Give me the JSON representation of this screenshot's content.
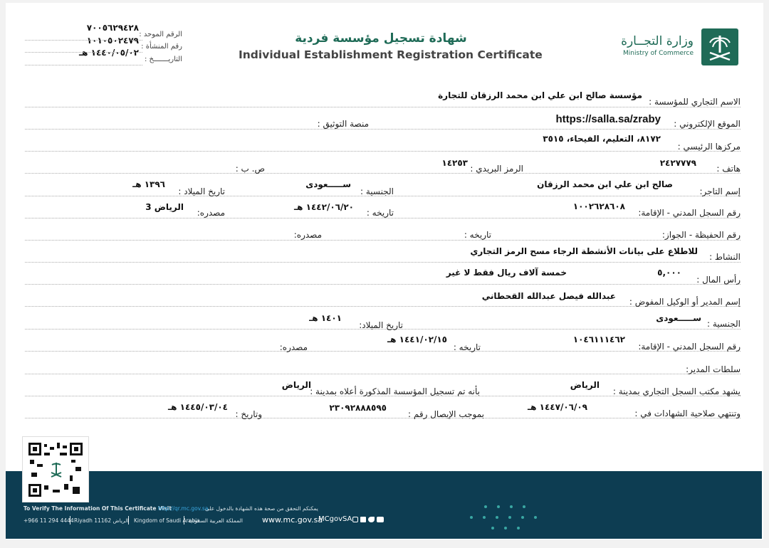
{
  "header": {
    "ministry_ar": "وزارة التجــارة",
    "ministry_en": "Ministry of Commerce",
    "title_ar": "شهادة تسجيل مؤسسة فردية",
    "title_en": "Individual Establishment Registration Certificate",
    "meta": [
      {
        "label": "الرقم الموحد :",
        "value": "٧٠٠٥٦٢٩٤٢٨"
      },
      {
        "label": "رقم المنشأة :",
        "value": "١٠١٠٥٠٢٤٧٩"
      },
      {
        "label": "التاريـــــــخ :",
        "value": "١٤٤٠/٠٥/٠٢ هـ"
      }
    ]
  },
  "fields": {
    "trade_name": {
      "label": "الاسم التجاري للمؤسسة :",
      "value": "مؤسسة صالح ابن علي ابن محمد الرزقان للتجارة"
    },
    "website": {
      "label": "الموقع الإلكتروني :",
      "value": "https://salla.sa/zraby"
    },
    "auth_platform": {
      "label": "منصة التوثيق :"
    },
    "hq": {
      "label": "مركزها الرئيسي :",
      "value": "٨١٧٢، التعليم، الفيحاء، ٣٥١٥"
    },
    "phone": {
      "label": "هاتف :",
      "value": "٢٤٢٧٧٧٩"
    },
    "postal": {
      "label": "الرمز البريدي :",
      "value": "١٤٢٥٣"
    },
    "pobox": {
      "label": "ص. ب :"
    },
    "merchant_name": {
      "label": "إسم التاجر:",
      "value": "صالح ابن علي ابن محمد الرزقان"
    },
    "merchant_nationality": {
      "label": "الجنسية :",
      "value": "ســـــعودى"
    },
    "merchant_birth": {
      "label": "تاريخ الميلاد :",
      "value": "١٣٩٦ هـ"
    },
    "merchant_id": {
      "label": "رقم السجل المدني - الإقامة:",
      "value": "١٠٠٢٦٢٨٦٠٨"
    },
    "merchant_id_date": {
      "label": "تاريخه :",
      "value": "١٤٤٢/٠٦/٢٠ هـ"
    },
    "merchant_id_source": {
      "label": "مصدره:",
      "value": "الرياض 3"
    },
    "passport": {
      "label": "رقم الحفيظة - الجواز:"
    },
    "passport_date": {
      "label": "تاريخه :"
    },
    "passport_source": {
      "label": "مصدره:"
    },
    "activity": {
      "label": "النشاط :",
      "value": "للاطلاع على بيانات الأنشطة الرجاء مسح الرمز التجاري"
    },
    "capital": {
      "label": "رأس المال :",
      "value": "٥,٠٠٠",
      "words": "خمسة آلاف   ريال  فقط لا غير"
    },
    "manager_name": {
      "label": "إسم المدير أو الوكيل المفوض :",
      "value": "عبدالله فيصل عبدالله القحطاني"
    },
    "manager_nationality": {
      "label": "الجنسية :",
      "value": "ســـــعودى"
    },
    "manager_birth": {
      "label": "تاريخ الميلاد:",
      "value": "١٤٠١ هـ"
    },
    "manager_id": {
      "label": "رقم السجل المدني - الإقامة:",
      "value": "١٠٤٦١١١٤٦٢"
    },
    "manager_id_date": {
      "label": "تاريخه :",
      "value": "١٤٤١/٠٢/١٥ هـ"
    },
    "manager_id_source": {
      "label": "مصدره:"
    },
    "manager_powers": {
      "label": "سلطات المدير:"
    },
    "witness_office": {
      "label": "يشهد مكتب السجل التجاري بمدينة :",
      "value": "الرياض"
    },
    "registered_city": {
      "label": "بأنه تم تسجيل المؤسسة المذكورة أعلاه بمدينة :",
      "value": "الرياض"
    },
    "expiry": {
      "label": "وتنتهي صلاحية الشهادات في :",
      "value": "١٤٤٧/٠٦/٠٩ هـ"
    },
    "receipt": {
      "label": "بموجب الإيصال رقم :",
      "value": "٢٣٠٩٢٨٨٨٥٩٥"
    },
    "receipt_date": {
      "label": "وتاريخ :",
      "value": "١٤٤٥/٠٣/٠٤ هـ"
    }
  },
  "footer": {
    "verify_en": "To Verify The Information Of This Certificate Visit",
    "verify_link": "http://qr.mc.gov.sa",
    "verify_ar": "يمكنكم التحقق من صحة هذه الشهادة بالدخول على",
    "phone": "+966 11 294 4444",
    "city": "Riyadh 11162 الرياض",
    "country_en": "Kingdom of Saudi Arabia",
    "country_ar": "المملكة العربية السعودية",
    "website": "www.mc.gov.sa",
    "handle": "MCgovSA"
  },
  "colors": {
    "brand": "#0d3d52",
    "accent": "#1f8a6e",
    "dots": "#3aa7a3"
  }
}
